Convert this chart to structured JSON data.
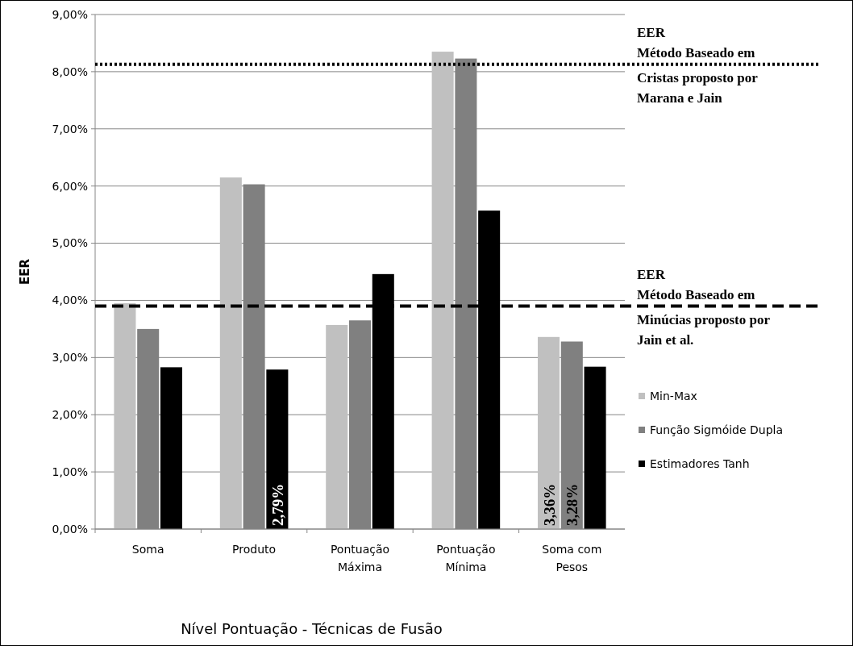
{
  "chart_data": {
    "type": "bar",
    "xlabel": "Nível Pontuação - Técnicas de Fusão",
    "ylabel": "EER",
    "categories": [
      "Soma",
      "Produto",
      "Pontuação Máxima",
      "Pontuação Mínima",
      "Soma com Pesos"
    ],
    "series": [
      {
        "name": "Min-Max",
        "color": "#c0c0c0",
        "values": [
          3.95,
          6.15,
          3.57,
          8.35,
          3.36
        ],
        "value_labels": [
          null,
          null,
          null,
          null,
          "3,36%"
        ]
      },
      {
        "name": "Função Sigmóide Dupla",
        "color": "#808080",
        "values": [
          3.5,
          6.03,
          3.65,
          8.23,
          3.28
        ],
        "value_labels": [
          null,
          null,
          null,
          null,
          "3,28%"
        ]
      },
      {
        "name": "Estimadores Tanh",
        "color": "#000000",
        "values": [
          2.83,
          2.79,
          4.46,
          5.57,
          2.84
        ],
        "value_labels": [
          null,
          "2,79%",
          null,
          null,
          null
        ]
      }
    ],
    "ylim": [
      0,
      9
    ],
    "yticks": [
      {
        "value": 0,
        "label": "0,00%"
      },
      {
        "value": 1,
        "label": "1,00%"
      },
      {
        "value": 2,
        "label": "2,00%"
      },
      {
        "value": 3,
        "label": "3,00%"
      },
      {
        "value": 4,
        "label": "4,00%"
      },
      {
        "value": 5,
        "label": "5,00%"
      },
      {
        "value": 6,
        "label": "6,00%"
      },
      {
        "value": 7,
        "label": "7,00%"
      },
      {
        "value": 8,
        "label": "8,00%"
      },
      {
        "value": 9,
        "label": "9,00%"
      }
    ],
    "grid": "y",
    "legend": "right",
    "ref_lines": [
      {
        "axis": "y",
        "value": 8.13,
        "label": "EER\nMétodo Baseado em Cristas proposto por Marana e Jain",
        "line_style": "dotted",
        "color": "#000000"
      },
      {
        "axis": "y",
        "value": 3.9,
        "label": "EER\nMétodo Baseado em Minúcias proposto por Jain et al.",
        "line_style": "dashed",
        "color": "#000000"
      }
    ]
  }
}
